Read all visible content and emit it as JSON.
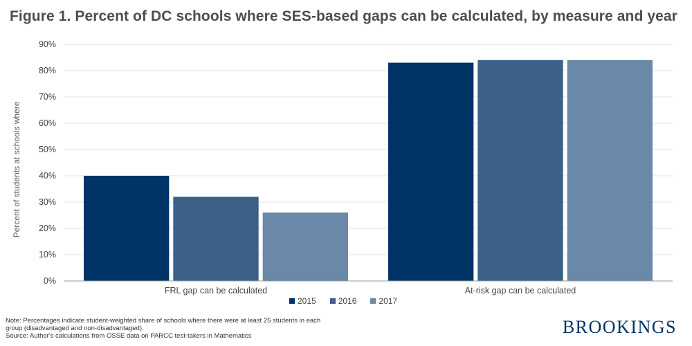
{
  "title": "Figure 1. Percent of DC schools where SES-based gaps can be calculated, by measure and year",
  "chart_data": {
    "type": "bar",
    "categories": [
      "FRL gap can be calculated",
      "At-risk gap can be calculated"
    ],
    "series": [
      {
        "name": "2015",
        "values": [
          40,
          83
        ],
        "color": "#003366"
      },
      {
        "name": "2016",
        "values": [
          32,
          84
        ],
        "color": "#3c6087"
      },
      {
        "name": "2017",
        "values": [
          26,
          84
        ],
        "color": "#6a88a8"
      }
    ],
    "ylabel": "Percent of students at schools where",
    "ylim": [
      0,
      90
    ],
    "yticks": [
      "0%",
      "10%",
      "20%",
      "30%",
      "40%",
      "50%",
      "60%",
      "70%",
      "80%",
      "90%"
    ],
    "grid": true,
    "legend_position": "bottom-center"
  },
  "note": {
    "line1": "Note: Percentages indicate student-weighted share of schools where there were at least 25 students in each",
    "line2": "group (disadvantaged and non-disadvantaged).",
    "line3": "Source: Author's calculations from OSSE data on PARCC test-takers in Mathematics"
  },
  "logo": "BROOKINGS"
}
